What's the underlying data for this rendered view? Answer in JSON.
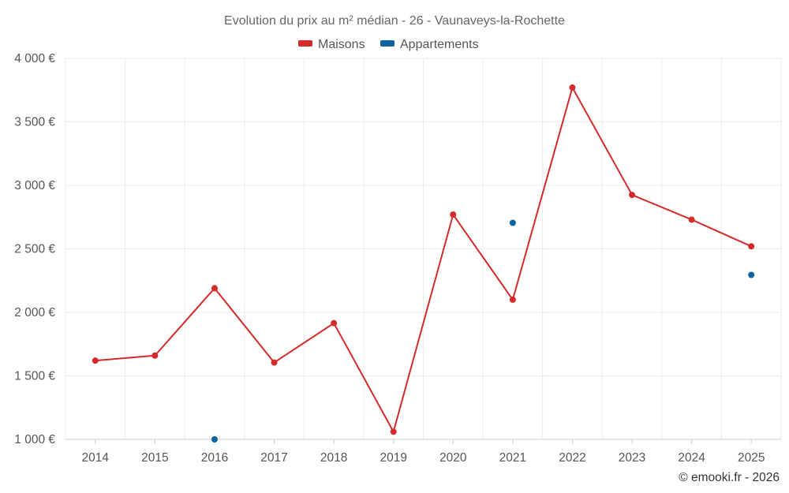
{
  "chart_data": {
    "type": "line",
    "title": "Evolution du prix au m² médian - 26 - Vaunaveys-la-Rochette",
    "categories": [
      "2014",
      "2015",
      "2016",
      "2017",
      "2018",
      "2019",
      "2020",
      "2021",
      "2022",
      "2023",
      "2024",
      "2025"
    ],
    "series": [
      {
        "name": "Maisons",
        "color": "#d42a2a",
        "values": [
          1620,
          1660,
          2190,
          1605,
          1915,
          1060,
          2770,
          2100,
          3770,
          2925,
          2730,
          2520
        ]
      },
      {
        "name": "Appartements",
        "color": "#0f62a0",
        "values": [
          null,
          null,
          1000,
          null,
          null,
          null,
          null,
          2705,
          null,
          null,
          null,
          2295
        ]
      }
    ],
    "ylim": [
      1000,
      4000
    ],
    "yticks": [
      1000,
      1500,
      2000,
      2500,
      3000,
      3500,
      4000
    ],
    "ytick_labels": [
      "1 000 €",
      "1 500 €",
      "2 000 €",
      "2 500 €",
      "3 000 €",
      "3 500 €",
      "4 000 €"
    ],
    "xlabel": "",
    "ylabel": "",
    "legend_position": "top-center",
    "grid": true
  },
  "credit": "© emooki.fr - 2026"
}
